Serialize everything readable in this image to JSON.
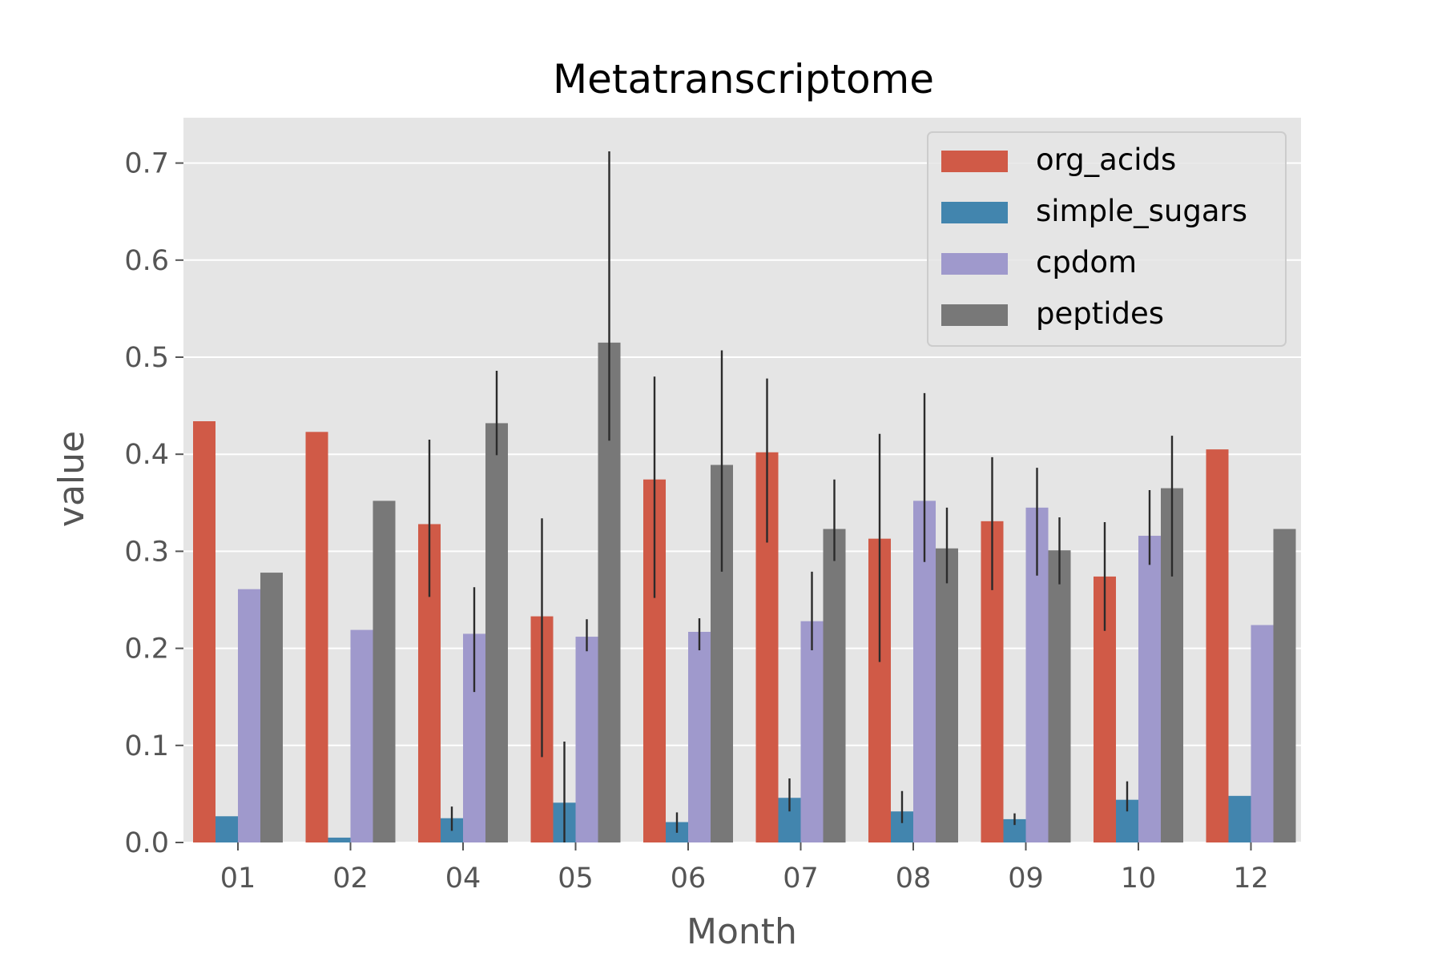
{
  "chart_data": {
    "type": "bar",
    "title": "Metatranscriptome",
    "xlabel": "Month",
    "ylabel": "value",
    "ylim": [
      0,
      0.745
    ],
    "yticks": [
      "0.0",
      "0.1",
      "0.2",
      "0.3",
      "0.4",
      "0.5",
      "0.6",
      "0.7"
    ],
    "grid": true,
    "legend_position": "top-right",
    "categories": [
      "01",
      "02",
      "04",
      "05",
      "06",
      "07",
      "08",
      "09",
      "10",
      "12"
    ],
    "series": [
      {
        "name": "org_acids",
        "color": "#d05a47",
        "values": [
          0.434,
          0.423,
          0.328,
          0.233,
          0.374,
          0.402,
          0.313,
          0.331,
          0.274,
          0.405
        ],
        "err_low": [
          null,
          null,
          0.253,
          0.088,
          0.252,
          0.309,
          0.186,
          0.26,
          0.218,
          null
        ],
        "err_high": [
          null,
          null,
          0.415,
          0.334,
          0.48,
          0.478,
          0.421,
          0.397,
          0.33,
          null
        ]
      },
      {
        "name": "simple_sugars",
        "color": "#4285ae",
        "values": [
          0.027,
          0.005,
          0.025,
          0.041,
          0.021,
          0.046,
          0.032,
          0.024,
          0.044,
          0.048
        ],
        "err_low": [
          null,
          null,
          0.012,
          0.0,
          0.01,
          0.032,
          0.02,
          0.018,
          0.032,
          null
        ],
        "err_high": [
          null,
          null,
          0.037,
          0.104,
          0.031,
          0.066,
          0.053,
          0.03,
          0.063,
          null
        ]
      },
      {
        "name": "cpdom",
        "color": "#9f99cc",
        "values": [
          0.261,
          0.219,
          0.215,
          0.212,
          0.217,
          0.228,
          0.352,
          0.345,
          0.316,
          0.224
        ],
        "err_low": [
          null,
          null,
          0.155,
          0.197,
          0.198,
          0.198,
          0.289,
          0.275,
          0.286,
          null
        ],
        "err_high": [
          null,
          null,
          0.263,
          0.23,
          0.231,
          0.279,
          0.463,
          0.386,
          0.363,
          null
        ]
      },
      {
        "name": "peptides",
        "color": "#787878",
        "values": [
          0.278,
          0.352,
          0.432,
          0.515,
          0.389,
          0.323,
          0.303,
          0.301,
          0.365,
          0.323
        ],
        "err_low": [
          null,
          null,
          0.399,
          0.414,
          0.279,
          0.29,
          0.267,
          0.266,
          0.274,
          null
        ],
        "err_high": [
          null,
          null,
          0.486,
          0.712,
          0.507,
          0.374,
          0.345,
          0.335,
          0.419,
          null
        ]
      }
    ]
  }
}
